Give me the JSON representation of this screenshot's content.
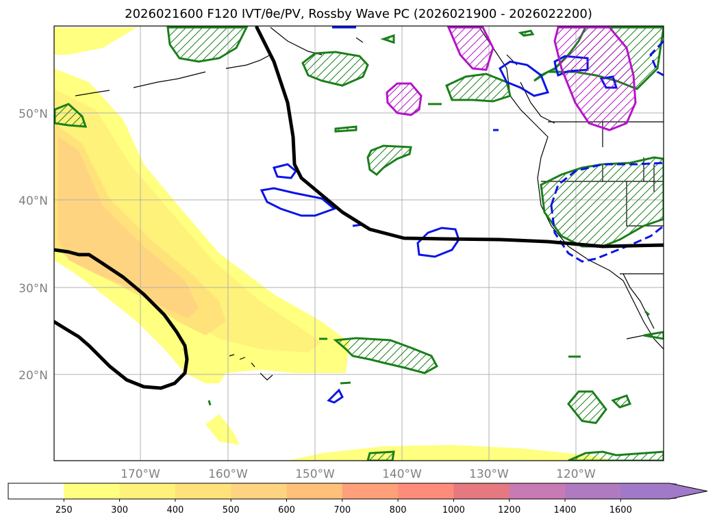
{
  "title": "2026021600 F120 IVT/θe/PV, Rossby Wave PC (2026021900 - 2026022200)",
  "map": {
    "region": "North-East Pacific",
    "lat_labels": [
      "50°N",
      "40°N",
      "30°N",
      "20°N"
    ],
    "lon_labels": [
      "170°W",
      "160°W",
      "150°W",
      "140°W",
      "130°W",
      "120°W"
    ],
    "fields": {
      "ivt_shading": "IVT",
      "black_contour": "θe / PV",
      "green_hatched": "Rossby Wave PC (positive)",
      "blue_contours": "Rossby Wave PC (negative)",
      "magenta_hatched": "PV anomaly"
    },
    "colors": {
      "ivt_250": "#ffff80",
      "ivt_300": "#fff27a",
      "ivt_400": "#ffe27a",
      "ivt_500": "#ffd480",
      "black_contour": "#000000",
      "green": "#1a7f1a",
      "blue": "#0a14e6",
      "magenta": "#b414c8",
      "coast": "#000000",
      "grid": "#b0b0b0"
    }
  },
  "colorbar": {
    "labels": [
      "250",
      "300",
      "400",
      "500",
      "600",
      "700",
      "800",
      "1000",
      "1200",
      "1400",
      "1600"
    ],
    "colors": [
      "#ffffff",
      "#ffff80",
      "#fff27a",
      "#ffe27a",
      "#ffd480",
      "#ffc07a",
      "#ffa07a",
      "#ff8c7a",
      "#e67880",
      "#c87ab4",
      "#b07ac0",
      "#a07ac8"
    ]
  }
}
